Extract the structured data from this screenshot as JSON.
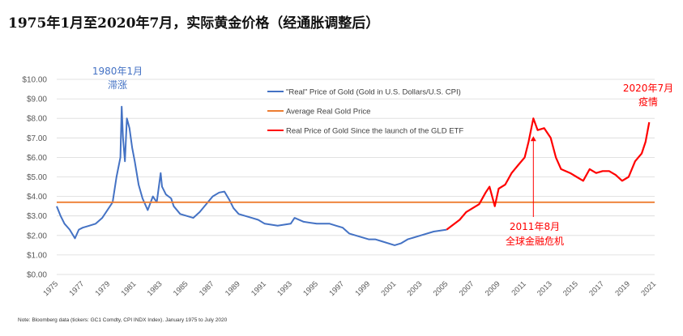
{
  "title": "1975年1月至2020年7月，实际黄金价格（经通胀调整后）",
  "footnote": "Note: Bloomberg data (tickers: GC1 Comdty, CPI INDX Index). January 1975 to July 2020",
  "chart_data": {
    "type": "line",
    "ylim": [
      0,
      10
    ],
    "xlim": [
      1975,
      2021
    ],
    "y_ticks": [
      "$0.00",
      "$1.00",
      "$2.00",
      "$3.00",
      "$4.00",
      "$5.00",
      "$6.00",
      "$7.00",
      "$8.00",
      "$9.00",
      "$10.00"
    ],
    "x_ticks": [
      "1975",
      "1977",
      "1979",
      "1981",
      "1983",
      "1985",
      "1987",
      "1989",
      "1991",
      "1993",
      "1995",
      "1997",
      "1999",
      "2001",
      "2003",
      "2005",
      "2007",
      "2009",
      "2011",
      "2013",
      "2015",
      "2017",
      "2019",
      "2021"
    ],
    "legend": [
      {
        "label": "\"Real\" Price of Gold (Gold in U.S. Dollars/U.S. CPI)",
        "color": "#4472C4"
      },
      {
        "label": "Average Real Gold Price",
        "color": "#ED7D31"
      },
      {
        "label": "Real Price of Gold Since the launch of the GLD ETF",
        "color": "#FF0000"
      }
    ],
    "series": [
      {
        "name": "\"Real\" Price of Gold (Gold in U.S. Dollars/U.S. CPI)",
        "color": "#4472C4",
        "x": [
          1975.0,
          1975.3,
          1975.6,
          1976.0,
          1976.4,
          1976.7,
          1977.0,
          1977.5,
          1978.0,
          1978.5,
          1979.0,
          1979.3,
          1979.6,
          1979.9,
          1980.0,
          1980.1,
          1980.25,
          1980.4,
          1980.6,
          1980.8,
          1981.0,
          1981.3,
          1981.6,
          1982.0,
          1982.4,
          1982.7,
          1983.0,
          1983.1,
          1983.4,
          1983.8,
          1984.0,
          1984.5,
          1985.0,
          1985.5,
          1986.0,
          1986.5,
          1987.0,
          1987.5,
          1987.9,
          1988.3,
          1988.6,
          1989.0,
          1989.5,
          1990.0,
          1990.5,
          1991.0,
          1992.0,
          1993.0,
          1993.3,
          1994.0,
          1995.0,
          1996.0,
          1996.5,
          1997.0,
          1997.5,
          1998.0,
          1999.0,
          1999.5,
          2000.0,
          2001.0,
          2001.5,
          2002.0,
          2003.0,
          2004.0,
          2005.0
        ],
        "values": [
          3.5,
          3.0,
          2.6,
          2.3,
          1.85,
          2.3,
          2.4,
          2.5,
          2.6,
          2.9,
          3.4,
          3.7,
          5.0,
          6.0,
          8.6,
          7.0,
          5.8,
          8.0,
          7.5,
          6.5,
          5.8,
          4.6,
          3.9,
          3.3,
          4.0,
          3.7,
          5.2,
          4.5,
          4.1,
          3.9,
          3.5,
          3.1,
          3.0,
          2.9,
          3.2,
          3.6,
          4.0,
          4.2,
          4.25,
          3.8,
          3.4,
          3.1,
          3.0,
          2.9,
          2.8,
          2.6,
          2.5,
          2.6,
          2.9,
          2.7,
          2.6,
          2.6,
          2.5,
          2.4,
          2.1,
          2.0,
          1.8,
          1.8,
          1.7,
          1.5,
          1.6,
          1.8,
          2.0,
          2.2,
          2.3
        ]
      },
      {
        "name": "Average Real Gold Price",
        "color": "#ED7D31",
        "x": [
          1975,
          2021
        ],
        "values": [
          3.7,
          3.7
        ]
      },
      {
        "name": "Real Price of Gold Since the launch of the GLD ETF",
        "color": "#FF0000",
        "x": [
          2005.0,
          2006.0,
          2006.5,
          2007.0,
          2007.5,
          2008.0,
          2008.3,
          2008.7,
          2009.0,
          2009.5,
          2010.0,
          2010.5,
          2011.0,
          2011.3,
          2011.67,
          2012.0,
          2012.5,
          2013.0,
          2013.4,
          2013.8,
          2014.5,
          2015.0,
          2015.5,
          2016.0,
          2016.5,
          2017.0,
          2017.5,
          2018.0,
          2018.5,
          2019.0,
          2019.5,
          2020.0,
          2020.3,
          2020.58
        ],
        "values": [
          2.3,
          2.8,
          3.2,
          3.4,
          3.6,
          4.2,
          4.5,
          3.5,
          4.4,
          4.6,
          5.2,
          5.6,
          6.0,
          6.8,
          8.0,
          7.4,
          7.5,
          7.0,
          6.0,
          5.4,
          5.2,
          5.0,
          4.8,
          5.4,
          5.2,
          5.3,
          5.3,
          5.1,
          4.8,
          5.0,
          5.8,
          6.2,
          6.8,
          7.8
        ]
      }
    ],
    "annotations": [
      {
        "line1": "1980年1月",
        "line2": "滞涨",
        "color": "#4472C4"
      },
      {
        "line1": "2011年8月",
        "line2": "全球金融危机",
        "color": "#FF0000"
      },
      {
        "line1": "2020年7月",
        "line2": "疫情",
        "color": "#FF0000"
      }
    ]
  }
}
